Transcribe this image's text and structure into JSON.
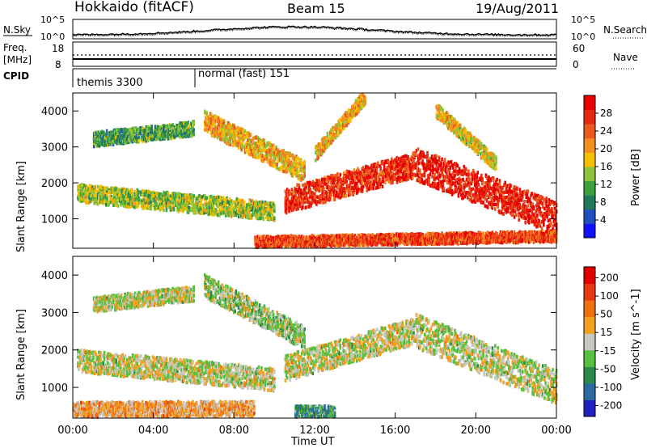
{
  "header": {
    "title": "Hokkaido (fitACF)",
    "beam": "Beam 15",
    "date": "19/Aug/2011"
  },
  "top_strip": {
    "nsky_label": "N.Sky",
    "nsky_ticks": [
      "10^5",
      "10^0"
    ],
    "nsearch_label": "N.Search",
    "nsearch_ticks": [
      "10^5",
      "10^0"
    ],
    "freq_label": "Freq.",
    "freq_unit": "[MHz]",
    "freq_ticks": [
      "18",
      "8"
    ],
    "nave_label": "Nave",
    "nave_ticks": [
      "60",
      "0"
    ],
    "cpid_label": "CPID",
    "cpid_segments": [
      "themis 3300",
      "normal (fast) 151"
    ]
  },
  "chart_data": [
    {
      "type": "heatmap",
      "title": "",
      "xlabel": "",
      "ylabel": "Slant Range [km]",
      "x_range_hours": [
        0,
        24
      ],
      "ylim": [
        180,
        4500
      ],
      "yticks": [
        "1000",
        "2000",
        "3000",
        "4000"
      ],
      "colorbar": {
        "label": "Power [dB]",
        "ticks": [
          "4",
          "8",
          "12",
          "16",
          "20",
          "24",
          "28"
        ],
        "colors": [
          "#1010ff",
          "#2050c0",
          "#207a5a",
          "#3aa040",
          "#8ec43c",
          "#f6c000",
          "#f39020",
          "#ec5a20",
          "#e62a10",
          "#e60000"
        ]
      },
      "echo_bands": [
        {
          "name": "",
          "t_start": 0.2,
          "t_end": 10.0,
          "r_start": 1700,
          "r_end": 1200,
          "width": 250,
          "level": 0.45
        },
        {
          "name": "",
          "t_start": 1.0,
          "t_end": 6.0,
          "r_start": 3200,
          "r_end": 3500,
          "width": 200,
          "level": 0.35
        },
        {
          "name": "",
          "t_start": 6.5,
          "t_end": 11.5,
          "r_start": 3700,
          "r_end": 2300,
          "width": 300,
          "level": 0.6
        },
        {
          "name": "",
          "t_start": 10.5,
          "t_end": 17.0,
          "r_start": 1500,
          "r_end": 2500,
          "width": 350,
          "level": 0.85
        },
        {
          "name": "",
          "t_start": 17.0,
          "t_end": 24.0,
          "r_start": 2500,
          "r_end": 1000,
          "width": 450,
          "level": 0.9
        },
        {
          "name": "",
          "t_start": 12.0,
          "t_end": 14.5,
          "r_start": 2800,
          "r_end": 4400,
          "width": 200,
          "level": 0.6
        },
        {
          "name": "",
          "t_start": 18.0,
          "t_end": 21.0,
          "r_start": 4000,
          "r_end": 2500,
          "width": 200,
          "level": 0.55
        },
        {
          "name": "",
          "t_start": 9.0,
          "t_end": 24.0,
          "r_start": 350,
          "r_end": 500,
          "width": 150,
          "level": 0.8
        }
      ]
    },
    {
      "type": "heatmap",
      "title": "",
      "xlabel": "Time UT",
      "ylabel": "Slant Range [km]",
      "x_range_hours": [
        0,
        24
      ],
      "ylim": [
        180,
        4500
      ],
      "xticks": [
        "00:00",
        "04:00",
        "08:00",
        "12:00",
        "16:00",
        "20:00",
        "00:00"
      ],
      "yticks": [
        "1000",
        "2000",
        "3000",
        "4000"
      ],
      "colorbar": {
        "label": "Velocity [m s^-1]",
        "ticks": [
          "200",
          "100",
          "50",
          "15",
          "-15",
          "-50",
          "-100",
          "-200"
        ],
        "colors": [
          "#2020c0",
          "#2a6aa0",
          "#2e8a4a",
          "#58c040",
          "#c8c8c0",
          "#f2a020",
          "#f07010",
          "#e83810",
          "#e00000"
        ]
      },
      "echo_bands": [
        {
          "name": "",
          "t_start": 0.2,
          "t_end": 10.0,
          "r_start": 1700,
          "r_end": 1200,
          "width": 300,
          "level": 0.5
        },
        {
          "name": "",
          "t_start": 1.0,
          "t_end": 6.0,
          "r_start": 3200,
          "r_end": 3500,
          "width": 200,
          "level": 0.5
        },
        {
          "name": "",
          "t_start": 6.5,
          "t_end": 11.5,
          "r_start": 3700,
          "r_end": 2300,
          "width": 300,
          "level": 0.45
        },
        {
          "name": "",
          "t_start": 10.5,
          "t_end": 17.0,
          "r_start": 1500,
          "r_end": 2500,
          "width": 350,
          "level": 0.5
        },
        {
          "name": "",
          "t_start": 17.0,
          "t_end": 24.0,
          "r_start": 2500,
          "r_end": 1000,
          "width": 450,
          "level": 0.5
        },
        {
          "name": "",
          "t_start": 0.0,
          "t_end": 9.0,
          "r_start": 400,
          "r_end": 420,
          "width": 200,
          "level": 0.62
        },
        {
          "name": "",
          "t_start": 11.0,
          "t_end": 13.0,
          "r_start": 350,
          "r_end": 350,
          "width": 150,
          "level": 0.3
        }
      ]
    }
  ]
}
